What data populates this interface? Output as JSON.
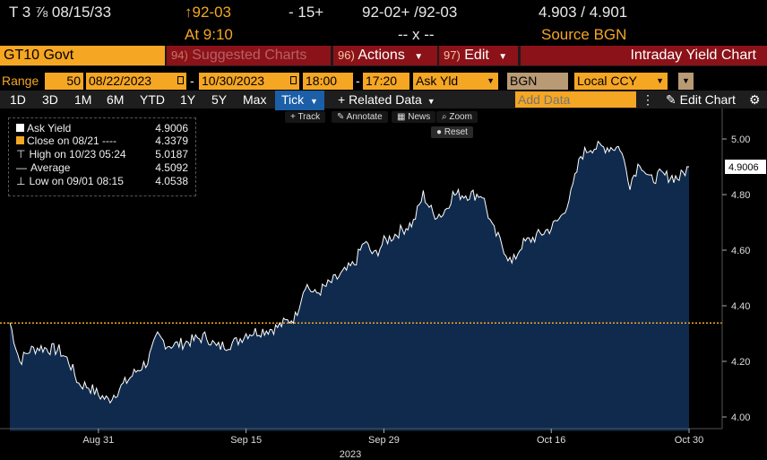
{
  "quote": {
    "ticker": "T 3 ⅞ 08/15/33",
    "price_arrow": "↑",
    "price": "92-03",
    "change": "- 15+",
    "bid_ask_price": "92-02+ /92-03",
    "yields": "4.903 / 4.901",
    "at_time": "At 9:10",
    "size": "-- x --",
    "source": "Source BGN"
  },
  "toolbar": {
    "security": "GT10 Govt",
    "suggested_num": "94)",
    "suggested_label": "Suggested Charts",
    "actions_num": "96)",
    "actions_label": "Actions",
    "edit_num": "97)",
    "edit_label": "Edit",
    "chart_title": "Intraday Yield Chart"
  },
  "range": {
    "label": "Range",
    "interval": "50",
    "start_date": "08/22/2023",
    "end_date": "10/30/2023",
    "start_time": "18:00",
    "end_time": "17:20",
    "field": "Ask Yld",
    "source": "BGN",
    "currency": "Local CCY",
    "dash1": "-",
    "dash2": "-"
  },
  "periods": {
    "items": [
      "1D",
      "3D",
      "1M",
      "6M",
      "YTD",
      "1Y",
      "5Y",
      "Max"
    ],
    "selected": "Tick",
    "related_data": "+ Related Data",
    "add_data_placeholder": "Add Data",
    "edit_chart": "Edit Chart"
  },
  "tools": {
    "track": "Track",
    "annotate": "Annotate",
    "news": "News",
    "zoom": "Zoom",
    "reset": "Reset"
  },
  "legend": {
    "ask_yield_label": "Ask Yield",
    "ask_yield_value": "4.9006",
    "close_label": "Close on 08/21 ----",
    "close_value": "4.3379",
    "high_label": "High on 10/23 05:24",
    "high_value": "5.0187",
    "avg_label": "Average",
    "avg_value": "4.5092",
    "low_label": "Low on 09/01 08:15",
    "low_value": "4.0538"
  },
  "colors": {
    "accent": "#f5a623",
    "area_fill": "#0f2a4c",
    "line": "#ffffff",
    "close_line": "#f5a623",
    "toolbar_red": "#8b1218",
    "selected_tab": "#1b5fa8"
  },
  "chart_data": {
    "type": "area",
    "title": "",
    "xlabel": "2023",
    "ylabel": "",
    "ylim": [
      4.0,
      5.05
    ],
    "yticks": [
      4.0,
      4.2,
      4.4,
      4.6,
      4.8,
      5.0
    ],
    "ytick_labels": [
      "4.00",
      "4.20",
      "4.40",
      "4.60",
      "4.80",
      "5.00"
    ],
    "xtick_labels": [
      {
        "label": "Aug 31",
        "x": "2023-08-31"
      },
      {
        "label": "Sep 15",
        "x": "2023-09-15"
      },
      {
        "label": "Sep 29",
        "x": "2023-09-29"
      },
      {
        "label": "Oct 16",
        "x": "2023-10-16"
      },
      {
        "label": "Oct 30",
        "x": "2023-10-30"
      }
    ],
    "last_value_label": "4.9006",
    "close_reference": 4.3379,
    "series": [
      {
        "name": "Ask Yield",
        "x": [
          "2023-08-22",
          "2023-08-23",
          "2023-08-24",
          "2023-08-25",
          "2023-08-27",
          "2023-08-28",
          "2023-08-29",
          "2023-08-30",
          "2023-08-31",
          "2023-09-01",
          "2023-09-04",
          "2023-09-05",
          "2023-09-06",
          "2023-09-07",
          "2023-09-08",
          "2023-09-11",
          "2023-09-12",
          "2023-09-13",
          "2023-09-14",
          "2023-09-15",
          "2023-09-18",
          "2023-09-19",
          "2023-09-20",
          "2023-09-21",
          "2023-09-22",
          "2023-09-25",
          "2023-09-26",
          "2023-09-27",
          "2023-09-28",
          "2023-09-29",
          "2023-10-02",
          "2023-10-03",
          "2023-10-04",
          "2023-10-05",
          "2023-10-06",
          "2023-10-09",
          "2023-10-10",
          "2023-10-11",
          "2023-10-12",
          "2023-10-13",
          "2023-10-16",
          "2023-10-17",
          "2023-10-18",
          "2023-10-19",
          "2023-10-20",
          "2023-10-23",
          "2023-10-24",
          "2023-10-25",
          "2023-10-26",
          "2023-10-27",
          "2023-10-29",
          "2023-10-30"
        ],
        "y": [
          4.34,
          4.2,
          4.24,
          4.25,
          4.24,
          4.2,
          4.12,
          4.11,
          4.08,
          4.06,
          4.17,
          4.2,
          4.29,
          4.26,
          4.26,
          4.29,
          4.25,
          4.26,
          4.27,
          4.3,
          4.32,
          4.34,
          4.36,
          4.48,
          4.44,
          4.52,
          4.55,
          4.63,
          4.58,
          4.63,
          4.7,
          4.8,
          4.73,
          4.73,
          4.8,
          4.8,
          4.68,
          4.62,
          4.55,
          4.62,
          4.68,
          4.72,
          4.8,
          4.94,
          4.97,
          4.97,
          4.84,
          4.92,
          4.85,
          4.87,
          4.86,
          4.9
        ]
      }
    ]
  }
}
